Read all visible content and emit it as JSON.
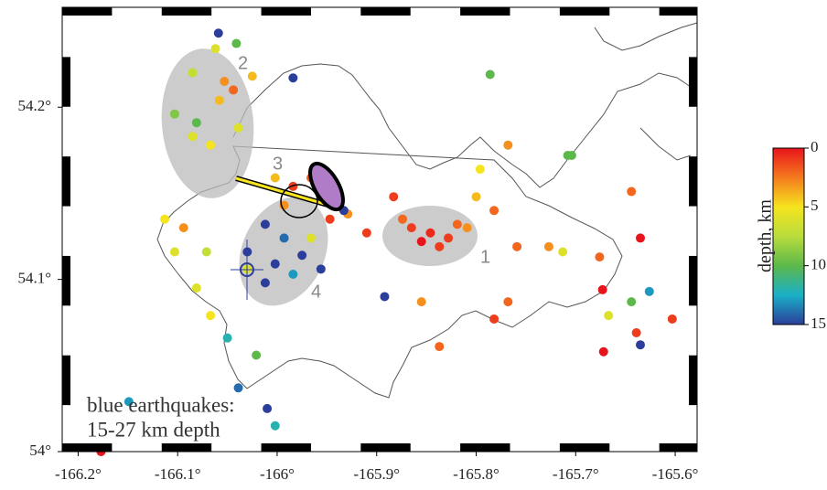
{
  "chart_data": {
    "type": "scatter",
    "x": [
      -165.865,
      -165.846,
      -165.828,
      -165.819,
      -165.837,
      -165.855,
      -165.809,
      -165.874,
      -165.883,
      -165.8,
      -165.796,
      -165.768,
      -165.782,
      -165.759,
      -165.727,
      -165.713,
      -165.708,
      -166.085,
      -166.058,
      -166.039,
      -166.067,
      -166.053,
      -166.085,
      -166.103,
      -166.081,
      -166.044,
      -166.059,
      -166.041,
      -166.062,
      -165.984,
      -166.025,
      -165.984,
      -165.966,
      -165.956,
      -165.993,
      -166.002,
      -165.947,
      -165.929,
      -165.91,
      -166.012,
      -165.993,
      -165.975,
      -166.002,
      -165.984,
      -166.03,
      -165.966,
      -166.012,
      -165.956,
      -166.03,
      -166.071,
      -166.081,
      -166.094,
      -166.113,
      -166.103,
      -165.673,
      -165.644,
      -165.626,
      -165.639,
      -165.603,
      -165.672,
      -165.635,
      -165.667,
      -165.676,
      -165.892,
      -165.933,
      -165.837,
      -165.855,
      -165.768,
      -165.782,
      -166.021,
      -166.039,
      -166.01,
      -166.002,
      -166.149,
      -166.177,
      -166.067,
      -166.05,
      -165.786,
      -165.704,
      -165.644,
      -165.635
    ],
    "y": [
      54.13,
      54.127,
      54.124,
      54.132,
      54.119,
      54.122,
      54.13,
      54.135,
      54.148,
      54.148,
      54.164,
      54.178,
      54.14,
      54.119,
      54.119,
      54.116,
      54.172,
      54.183,
      54.204,
      54.188,
      54.178,
      54.215,
      54.22,
      54.196,
      54.191,
      54.21,
      54.243,
      54.237,
      54.234,
      54.217,
      54.218,
      54.154,
      54.159,
      54.148,
      54.143,
      54.159,
      54.135,
      54.138,
      54.127,
      54.132,
      54.124,
      54.114,
      54.109,
      54.103,
      54.116,
      54.124,
      54.098,
      54.106,
      54.106,
      54.116,
      54.095,
      54.13,
      54.135,
      54.116,
      54.094,
      54.087,
      54.093,
      54.069,
      54.077,
      54.058,
      54.062,
      54.079,
      54.113,
      54.09,
      54.14,
      54.061,
      54.087,
      54.087,
      54.077,
      54.056,
      54.037,
      54.025,
      54.015,
      54.029,
      54.0,
      54.079,
      54.066,
      54.219,
      54.172,
      54.151,
      54.124
    ],
    "depth": [
      1,
      0.5,
      1,
      2,
      1,
      0,
      3,
      2,
      1,
      4,
      5,
      3,
      2,
      2,
      3,
      6,
      10,
      6,
      4,
      6,
      5,
      3,
      7,
      9,
      10,
      2,
      15,
      10,
      6,
      15,
      4,
      1,
      2,
      2,
      3,
      4,
      1,
      3,
      1,
      15,
      14,
      15,
      15,
      13,
      15,
      6,
      15,
      15,
      6,
      7,
      6,
      3,
      5,
      6,
      0,
      10,
      13,
      1,
      1,
      0,
      15,
      6,
      2,
      15,
      15,
      2,
      3,
      2,
      1,
      10,
      14,
      15,
      12,
      13,
      0,
      5,
      12,
      10,
      10,
      2,
      0
    ],
    "xlim": [
      -166.216,
      -165.578
    ],
    "ylim": [
      54.0,
      54.258
    ],
    "xticks": [
      {
        "value": -166.2,
        "label": "-166.2°"
      },
      {
        "value": -166.1,
        "label": "-166.1°"
      },
      {
        "value": -166.0,
        "label": "-166°"
      },
      {
        "value": -165.9,
        "label": "-165.9°"
      },
      {
        "value": -165.8,
        "label": "-165.8°"
      },
      {
        "value": -165.7,
        "label": "-165.7°"
      },
      {
        "value": -165.6,
        "label": "-165.6°"
      }
    ],
    "yticks": [
      {
        "value": 54.0,
        "label": "54°"
      },
      {
        "value": 54.1,
        "label": "54.1°"
      },
      {
        "value": 54.2,
        "label": "54.2°"
      }
    ],
    "colorbar": {
      "label": "depth, km",
      "lim": [
        0,
        15
      ],
      "ticks": [
        0,
        5,
        10,
        15
      ],
      "colors": [
        "#e8141c",
        "#f57a1e",
        "#f5e41e",
        "#b9dc3c",
        "#5cb84a",
        "#1ab0c8",
        "#2b3e9a"
      ]
    },
    "regions": [
      "1",
      "2",
      "3",
      "4"
    ],
    "annotation": [
      "blue earthquakes:",
      "15-27 km depth"
    ]
  }
}
